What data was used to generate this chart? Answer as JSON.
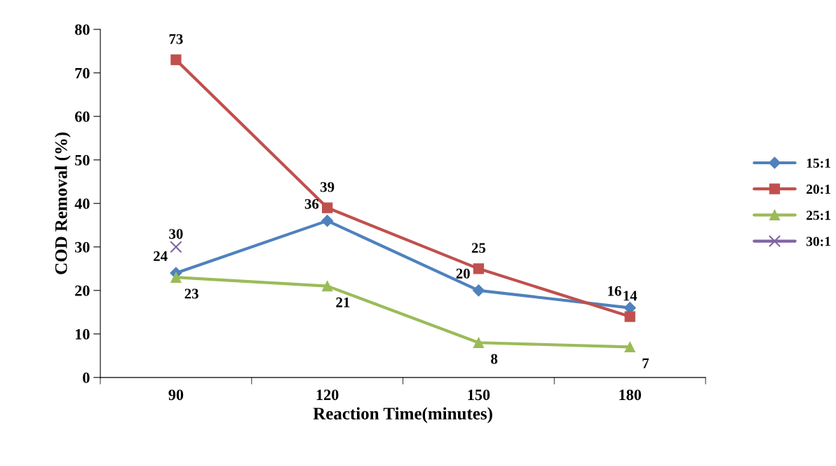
{
  "chart_data": {
    "type": "line",
    "xlabel": "Reaction Time(minutes)",
    "ylabel": "COD Removal (%)",
    "categories": [
      "90",
      "120",
      "150",
      "180"
    ],
    "series": [
      {
        "name": "15:1",
        "color": "#4f81bd",
        "marker": "diamond",
        "values": [
          24,
          36,
          20,
          16
        ]
      },
      {
        "name": "20:1",
        "color": "#c0504d",
        "marker": "square",
        "values": [
          73,
          39,
          25,
          14
        ]
      },
      {
        "name": "25:1",
        "color": "#9bbb59",
        "marker": "triangle",
        "values": [
          23,
          21,
          8,
          7
        ]
      },
      {
        "name": "30:1",
        "color": "#8064a2",
        "marker": "cross",
        "values": [
          30,
          null,
          null,
          null
        ]
      }
    ],
    "ylim": [
      0,
      80
    ],
    "yticks": [
      0,
      10,
      20,
      30,
      40,
      50,
      60,
      70,
      80
    ],
    "grid": false,
    "legend": "right",
    "data_labels": true,
    "line_style": "solid"
  }
}
